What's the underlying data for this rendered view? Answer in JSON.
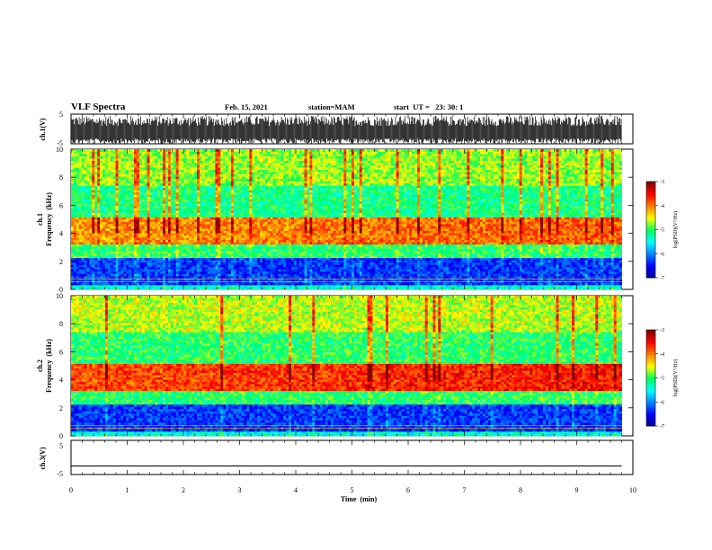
{
  "header": {
    "title": "VLF Spectra",
    "date": "Feb. 15, 2021",
    "station": "station=MAM",
    "start": "start  UT =   23: 30: 1"
  },
  "chart_data": [
    {
      "type": "line",
      "panel": "ch1-waveform",
      "ylabel": "ch.1(V)",
      "ytick_labels": [
        "5",
        "-5"
      ],
      "ylim": [
        -5,
        5
      ],
      "xlim": [
        0,
        10
      ],
      "description_values": {
        "amplitude_range": [
          -5,
          5
        ],
        "signal": "dense impulsive noise, fills about -5 to 4 V"
      }
    },
    {
      "type": "heatmap",
      "panel": "ch1-spectrogram",
      "ylabel_lines": [
        "ch.1",
        "Frequency  (kHz)"
      ],
      "ytick_labels": [
        "0",
        "2",
        "4",
        "6",
        "8",
        "10"
      ],
      "ylim": [
        0,
        10
      ],
      "xlim": [
        0,
        9.8
      ],
      "bands": [
        {
          "range": [
            0,
            2.2
          ],
          "level": -6.3
        },
        {
          "range": [
            2.2,
            3.2
          ],
          "level": -5.0
        },
        {
          "range": [
            3.2,
            5.2
          ],
          "level": -4.1
        },
        {
          "range": [
            5.2,
            7.5
          ],
          "level": -5.1
        },
        {
          "range": [
            7.5,
            10
          ],
          "level": -4.7
        }
      ],
      "colorbar": {
        "label": "log(PSD)(V²/Hz)",
        "ticks": [
          "-3",
          "-4",
          "-5",
          "-6",
          "-7"
        ],
        "range": [
          -7,
          -3
        ]
      }
    },
    {
      "type": "heatmap",
      "panel": "ch2-spectrogram",
      "ylabel_lines": [
        "ch.2",
        "Frequency  (kHz)"
      ],
      "ytick_labels": [
        "0",
        "2",
        "4",
        "6",
        "8",
        "10"
      ],
      "ylim": [
        0,
        10
      ],
      "xlim": [
        0,
        9.8
      ],
      "bands": [
        {
          "range": [
            0,
            2.2
          ],
          "level": -6.3
        },
        {
          "range": [
            2.2,
            3.2
          ],
          "level": -5.0
        },
        {
          "range": [
            3.2,
            5.2
          ],
          "level": -3.8
        },
        {
          "range": [
            5.2,
            7.5
          ],
          "level": -5.0
        },
        {
          "range": [
            7.5,
            10
          ],
          "level": -4.6
        }
      ],
      "colorbar": {
        "label": "log(PSD)(V²/Hz)",
        "ticks": [
          "-3",
          "-4",
          "-5",
          "-6",
          "-7"
        ],
        "range": [
          -7,
          -3
        ]
      }
    },
    {
      "type": "line",
      "panel": "ch3-waveform",
      "ylabel": "ch.3(V)",
      "ytick_labels": [
        "5",
        "-5"
      ],
      "ylim": [
        -5,
        5
      ],
      "xlim": [
        0,
        10
      ],
      "x": [
        0,
        9.8
      ],
      "y": [
        -2.5,
        -2.5
      ]
    }
  ],
  "xaxis": {
    "label": "Time  (min)",
    "ticks": [
      "0",
      "1",
      "2",
      "3",
      "4",
      "5",
      "6",
      "7",
      "8",
      "9",
      "10"
    ],
    "range": [
      0,
      10
    ]
  },
  "colors": {
    "low": "#00008f",
    "blue": "#0000ff",
    "cyan": "#00ffff",
    "green": "#00ff60",
    "yellow": "#ffff00",
    "orange": "#ff8000",
    "red": "#ff0000",
    "darkred": "#800000"
  }
}
